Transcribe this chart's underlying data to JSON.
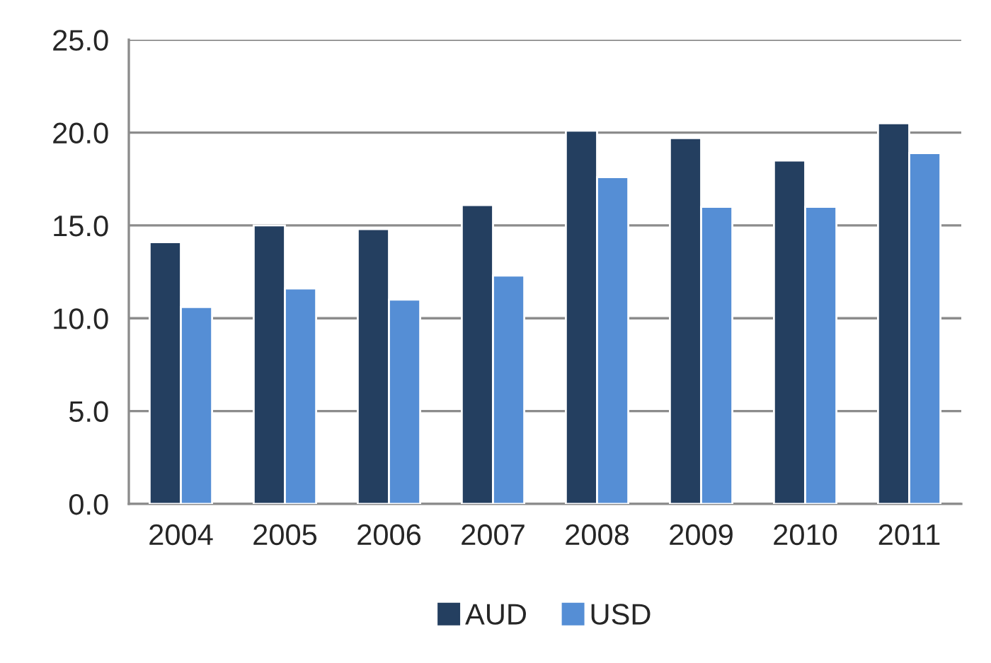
{
  "chart_data": {
    "type": "bar",
    "categories": [
      "2004",
      "2005",
      "2006",
      "2007",
      "2008",
      "2009",
      "2010",
      "2011"
    ],
    "series": [
      {
        "name": "AUD",
        "color": "#243f60",
        "values": [
          14.1,
          15.0,
          14.8,
          16.1,
          20.1,
          19.7,
          18.5,
          20.5
        ]
      },
      {
        "name": "USD",
        "color": "#558ed5",
        "values": [
          10.6,
          11.6,
          11.0,
          12.3,
          17.6,
          16.0,
          16.0,
          18.9
        ]
      }
    ],
    "ylim": [
      0,
      25
    ],
    "yticks": [
      {
        "value": 0,
        "label": "0.0"
      },
      {
        "value": 5,
        "label": "5.0"
      },
      {
        "value": 10,
        "label": "10.0"
      },
      {
        "value": 15,
        "label": "15.0"
      },
      {
        "value": 20,
        "label": "20.0"
      },
      {
        "value": 25,
        "label": "25.0"
      }
    ],
    "grid": "y",
    "legend": "bottom"
  }
}
